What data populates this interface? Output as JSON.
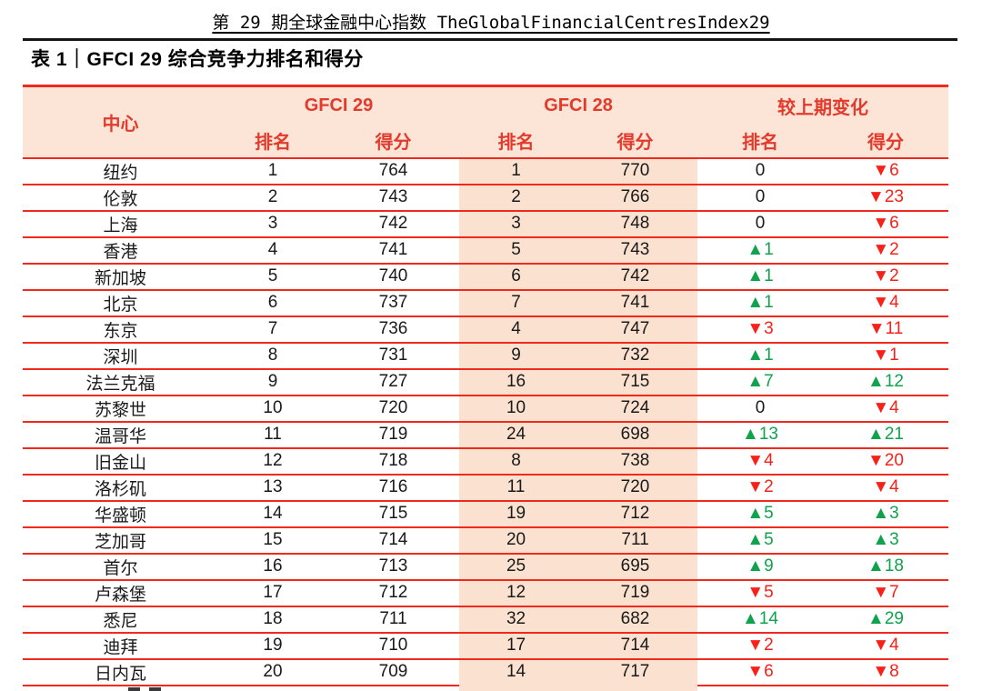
{
  "page_title": "第 29 期全球金融中心指数 TheGlobalFinancialCentresIndex29",
  "caption": "表 1｜GFCI 29 综合竞争力排名和得分",
  "table": {
    "center_header": "中心",
    "groups": [
      "GFCI 29",
      "GFCI 28",
      "较上期变化"
    ],
    "subheaders": [
      "排名",
      "得分"
    ],
    "column_names": [
      "city",
      "gfci29_rank",
      "gfci29_score",
      "gfci28_rank",
      "gfci28_score",
      "change_rank",
      "change_score"
    ],
    "rows": [
      [
        "纽约",
        "1",
        "764",
        "1",
        "770",
        "0",
        "▼6"
      ],
      [
        "伦敦",
        "2",
        "743",
        "2",
        "766",
        "0",
        "▼23"
      ],
      [
        "上海",
        "3",
        "742",
        "3",
        "748",
        "0",
        "▼6"
      ],
      [
        "香港",
        "4",
        "741",
        "5",
        "743",
        "▲1",
        "▼2"
      ],
      [
        "新加坡",
        "5",
        "740",
        "6",
        "742",
        "▲1",
        "▼2"
      ],
      [
        "北京",
        "6",
        "737",
        "7",
        "741",
        "▲1",
        "▼4"
      ],
      [
        "东京",
        "7",
        "736",
        "4",
        "747",
        "▼3",
        "▼11"
      ],
      [
        "深圳",
        "8",
        "731",
        "9",
        "732",
        "▲1",
        "▼1"
      ],
      [
        "法兰克福",
        "9",
        "727",
        "16",
        "715",
        "▲7",
        "▲12"
      ],
      [
        "苏黎世",
        "10",
        "720",
        "10",
        "724",
        "0",
        "▼4"
      ],
      [
        "温哥华",
        "11",
        "719",
        "24",
        "698",
        "▲13",
        "▲21"
      ],
      [
        "旧金山",
        "12",
        "718",
        "8",
        "738",
        "▼4",
        "▼20"
      ],
      [
        "洛杉矶",
        "13",
        "716",
        "11",
        "720",
        "▼2",
        "▼4"
      ],
      [
        "华盛顿",
        "14",
        "715",
        "19",
        "712",
        "▲5",
        "▲3"
      ],
      [
        "芝加哥",
        "15",
        "714",
        "20",
        "711",
        "▲5",
        "▲3"
      ],
      [
        "首尔",
        "16",
        "713",
        "25",
        "695",
        "▲9",
        "▲18"
      ],
      [
        "卢森堡",
        "17",
        "712",
        "12",
        "719",
        "▼5",
        "▼7"
      ],
      [
        "悉尼",
        "18",
        "711",
        "32",
        "682",
        "▲14",
        "▲29"
      ],
      [
        "迪拜",
        "19",
        "710",
        "17",
        "714",
        "▼2",
        "▼4"
      ],
      [
        "日内瓦",
        "20",
        "709",
        "14",
        "717",
        "▼6",
        "▼8"
      ]
    ],
    "up_symbol": "▲",
    "down_symbol": "▼"
  },
  "colors": {
    "header_bg": "#fce5d7",
    "highlight_col_bg": "#fae1d0",
    "line_red": "#f02b1d",
    "text_red": "#e23a2c",
    "up_green": "#10a24c",
    "down_red": "#f7211a"
  }
}
